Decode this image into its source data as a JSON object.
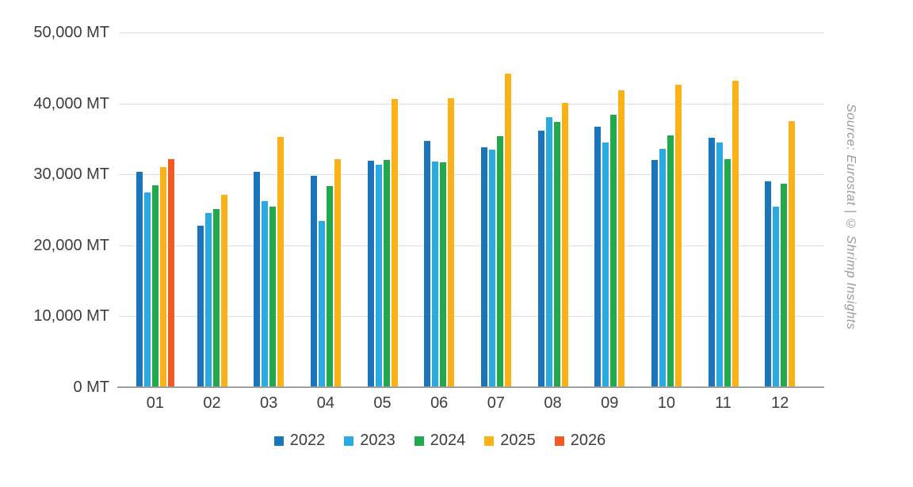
{
  "source_note": "Source: Eurostat | © Shrimp Insights",
  "colors": {
    "gridline": "#e0e0e0",
    "axis_line": "#9e9e9e",
    "tick_text": "#3d3d3d",
    "source_text": "#9a9a9a"
  },
  "chart_data": {
    "type": "bar",
    "title": "",
    "unit": "MT",
    "categories": [
      "01",
      "02",
      "03",
      "04",
      "05",
      "06",
      "07",
      "08",
      "09",
      "10",
      "11",
      "12"
    ],
    "yticks": [
      "0 MT",
      "10,000 MT",
      "20,000 MT",
      "30,000 MT",
      "40,000 MT",
      "50,000 MT"
    ],
    "ylim": [
      0,
      50000
    ],
    "grid": true,
    "legend_position": "bottom",
    "series": [
      {
        "name": "2022",
        "color": "#1b75bb",
        "values": [
          30400,
          22800,
          30400,
          29800,
          31900,
          34700,
          33800,
          36200,
          36700,
          32000,
          35200,
          29000
        ]
      },
      {
        "name": "2023",
        "color": "#29abe2",
        "values": [
          27500,
          24600,
          26200,
          23400,
          31400,
          31800,
          33500,
          38100,
          34500,
          33600,
          34500,
          25400
        ]
      },
      {
        "name": "2024",
        "color": "#22a94b",
        "values": [
          28500,
          25100,
          25400,
          28300,
          32000,
          31700,
          35400,
          37400,
          38400,
          35500,
          32100,
          28700
        ]
      },
      {
        "name": "2025",
        "color": "#fbb216",
        "values": [
          31000,
          27100,
          35300,
          32200,
          40600,
          40700,
          44200,
          40100,
          41900,
          42600,
          43200,
          37500
        ]
      },
      {
        "name": "2026",
        "color": "#f15a24",
        "values": [
          32100,
          null,
          null,
          null,
          null,
          null,
          null,
          null,
          null,
          null,
          null,
          null
        ]
      }
    ]
  }
}
